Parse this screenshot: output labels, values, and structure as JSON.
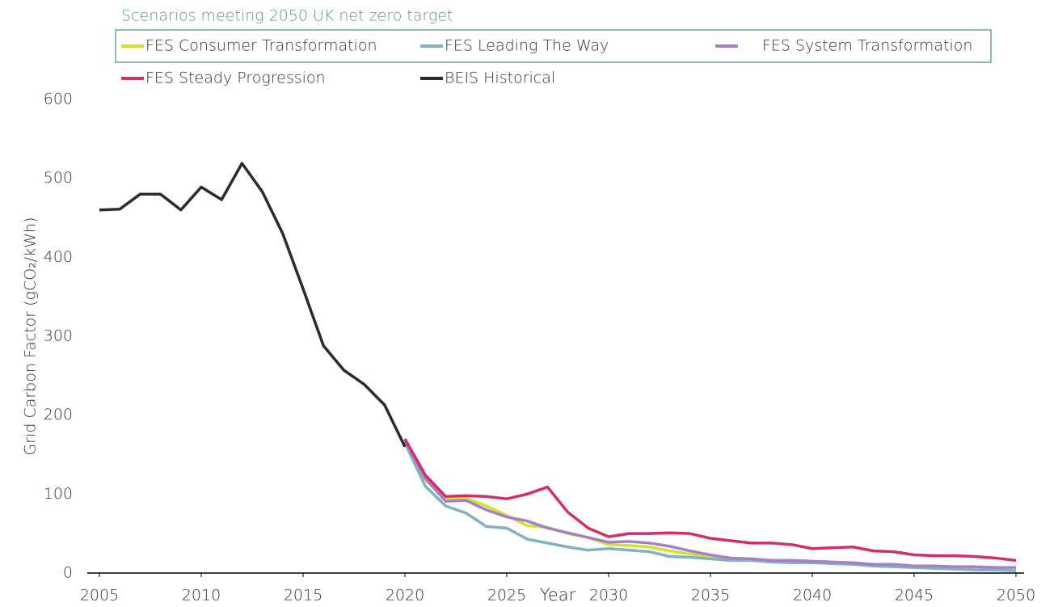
{
  "chart_data": {
    "type": "line",
    "title": "Scenarios meeting 2050 UK net zero target",
    "xlabel": "Year",
    "ylabel": "Grid Carbon Factor (gCO₂/kWh)",
    "x": [
      2005,
      2006,
      2007,
      2008,
      2009,
      2010,
      2011,
      2012,
      2013,
      2014,
      2015,
      2016,
      2017,
      2018,
      2019,
      2020,
      2021,
      2022,
      2023,
      2024,
      2025,
      2026,
      2027,
      2028,
      2029,
      2030,
      2031,
      2032,
      2033,
      2034,
      2035,
      2036,
      2037,
      2038,
      2039,
      2040,
      2041,
      2042,
      2043,
      2044,
      2045,
      2046,
      2047,
      2048,
      2049,
      2050
    ],
    "xlim": [
      2005,
      2050
    ],
    "xticks": [
      2005,
      2010,
      2015,
      2020,
      2025,
      2030,
      2035,
      2040,
      2045,
      2050
    ],
    "ylim": [
      0,
      600
    ],
    "yticks": [
      0,
      100,
      200,
      300,
      400,
      500,
      600
    ],
    "grid": false,
    "series": [
      {
        "name": "FES Consumer Transformation",
        "color": "#d4e227",
        "values": [
          null,
          null,
          null,
          null,
          null,
          null,
          null,
          null,
          null,
          null,
          null,
          null,
          null,
          null,
          null,
          168,
          118,
          93,
          95,
          85,
          73,
          60,
          58,
          50,
          45,
          36,
          35,
          33,
          28,
          24,
          21,
          18,
          17,
          16,
          15,
          14,
          13,
          12,
          9,
          8,
          7,
          6,
          5,
          5,
          4,
          3
        ]
      },
      {
        "name": "FES Leading The Way",
        "color": "#7fb2c2",
        "values": [
          null,
          null,
          null,
          null,
          null,
          null,
          null,
          null,
          null,
          null,
          null,
          null,
          null,
          null,
          null,
          165,
          110,
          85,
          76,
          59,
          57,
          43,
          38,
          33,
          29,
          31,
          29,
          27,
          21,
          20,
          18,
          16,
          16,
          14,
          13,
          13,
          12,
          11,
          9,
          8,
          7,
          6,
          5,
          4,
          4,
          3
        ]
      },
      {
        "name": "FES System Transformation",
        "color": "#a57fc8",
        "values": [
          null,
          null,
          null,
          null,
          null,
          null,
          null,
          null,
          null,
          null,
          null,
          null,
          null,
          null,
          null,
          168,
          120,
          91,
          92,
          80,
          71,
          66,
          57,
          51,
          45,
          39,
          40,
          38,
          34,
          28,
          23,
          19,
          18,
          16,
          16,
          15,
          14,
          13,
          11,
          11,
          9,
          9,
          8,
          8,
          7,
          7
        ]
      },
      {
        "name": "FES Steady Progression",
        "color": "#d42e6a",
        "values": [
          null,
          null,
          null,
          null,
          null,
          null,
          null,
          null,
          null,
          null,
          null,
          null,
          null,
          null,
          null,
          170,
          124,
          97,
          98,
          97,
          94,
          100,
          109,
          77,
          57,
          46,
          50,
          50,
          51,
          50,
          44,
          41,
          38,
          38,
          36,
          31,
          32,
          33,
          28,
          27,
          23,
          22,
          22,
          21,
          19,
          16
        ]
      },
      {
        "name": "BEIS Historical",
        "color": "#2b2b2b",
        "values": [
          460,
          461,
          480,
          480,
          460,
          489,
          473,
          519,
          483,
          430,
          360,
          288,
          257,
          239,
          213,
          160,
          null,
          null,
          null,
          null,
          null,
          null,
          null,
          null,
          null,
          null,
          null,
          null,
          null,
          null,
          null,
          null,
          null,
          null,
          null,
          null,
          null,
          null,
          null,
          null,
          null,
          null,
          null,
          null,
          null,
          null
        ]
      }
    ]
  }
}
